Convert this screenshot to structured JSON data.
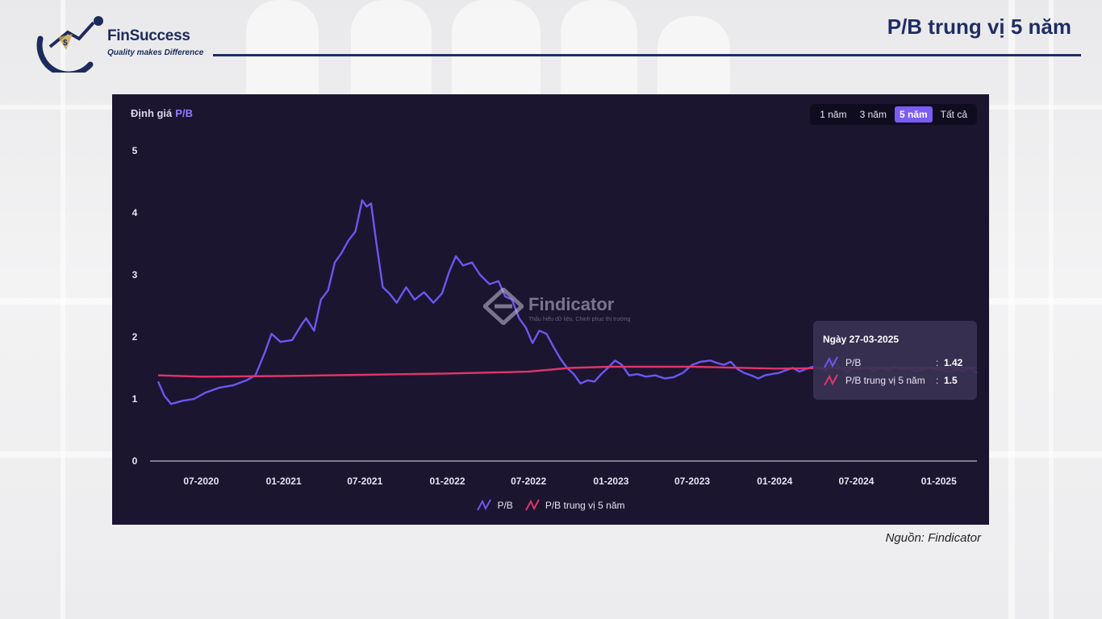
{
  "header": {
    "logo_name": "FinSuccess",
    "logo_tagline": "Quality makes Difference",
    "title": "P/B trung vị 5 năm"
  },
  "panel": {
    "title_prefix": "Định giá",
    "title_metric": "P/B",
    "range_buttons": [
      "1 năm",
      "3 năm",
      "5 năm",
      "Tất cả"
    ],
    "range_active": "5 năm",
    "watermark_name": "Findicator",
    "watermark_sub": "Thấu hiểu dữ liệu, Chinh phục thị trường"
  },
  "tooltip": {
    "date": "Ngày 27-03-2025",
    "rows": [
      {
        "name": "P/B",
        "value": "1.42"
      },
      {
        "name": "P/B trung vị 5 năm",
        "value": "1.5"
      }
    ]
  },
  "legend": [
    "P/B",
    "P/B trung vị 5 năm"
  ],
  "source": "Nguồn: Findicator",
  "colors": {
    "pb": "#6c57f0",
    "median": "#e0356a",
    "panel_bg": "#1b1530",
    "accent": "#7b5cf5"
  },
  "chart_data": {
    "type": "line",
    "x_tick_labels": [
      "07-2020",
      "01-2021",
      "07-2021",
      "01-2022",
      "07-2022",
      "01-2023",
      "07-2023",
      "01-2024",
      "07-2024",
      "01-2025"
    ],
    "y_tick_labels": [
      "0",
      "1",
      "2",
      "3",
      "4",
      "5"
    ],
    "ylim": [
      0,
      5
    ],
    "xlim": [
      "2020-03-27",
      "2025-03-27"
    ],
    "grid": false,
    "legend_position": "bottom",
    "series": [
      {
        "name": "P/B",
        "x": [
          "2020-03-27",
          "2020-04-10",
          "2020-04-25",
          "2020-05-20",
          "2020-06-15",
          "2020-07-10",
          "2020-08-10",
          "2020-09-10",
          "2020-10-10",
          "2020-10-30",
          "2020-11-20",
          "2020-12-05",
          "2020-12-25",
          "2021-01-20",
          "2021-02-10",
          "2021-02-20",
          "2021-03-10",
          "2021-03-25",
          "2021-04-10",
          "2021-04-25",
          "2021-05-10",
          "2021-05-25",
          "2021-06-10",
          "2021-06-25",
          "2021-07-05",
          "2021-07-15",
          "2021-07-25",
          "2021-08-10",
          "2021-08-25",
          "2021-09-10",
          "2021-10-01",
          "2021-10-20",
          "2021-11-10",
          "2021-12-01",
          "2021-12-20",
          "2022-01-05",
          "2022-01-20",
          "2022-02-05",
          "2022-02-25",
          "2022-03-15",
          "2022-04-05",
          "2022-04-25",
          "2022-05-10",
          "2022-05-25",
          "2022-06-10",
          "2022-06-25",
          "2022-07-10",
          "2022-07-25",
          "2022-08-10",
          "2022-08-25",
          "2022-09-10",
          "2022-09-25",
          "2022-10-10",
          "2022-10-25",
          "2022-11-10",
          "2022-11-25",
          "2022-12-10",
          "2022-12-25",
          "2023-01-10",
          "2023-01-25",
          "2023-02-10",
          "2023-03-01",
          "2023-03-20",
          "2023-04-10",
          "2023-05-01",
          "2023-05-20",
          "2023-06-10",
          "2023-07-01",
          "2023-07-20",
          "2023-08-10",
          "2023-08-25",
          "2023-09-10",
          "2023-09-25",
          "2023-10-10",
          "2023-10-25",
          "2023-11-10",
          "2023-11-25",
          "2023-12-10",
          "2023-12-25",
          "2024-01-10",
          "2024-01-25",
          "2024-02-10",
          "2024-02-25",
          "2024-03-10",
          "2024-03-25",
          "2024-04-10",
          "2024-04-25",
          "2024-05-10",
          "2024-05-25",
          "2024-06-10",
          "2024-06-25",
          "2024-07-10",
          "2024-07-25",
          "2024-08-10",
          "2024-08-25",
          "2024-09-10",
          "2024-09-25",
          "2024-10-10",
          "2024-10-25",
          "2024-11-10",
          "2024-11-25",
          "2024-12-10",
          "2024-12-25",
          "2025-01-10",
          "2025-01-25",
          "2025-02-10",
          "2025-02-25",
          "2025-03-10",
          "2025-03-27"
        ],
        "y": [
          1.28,
          1.05,
          0.92,
          0.97,
          1.0,
          1.1,
          1.18,
          1.22,
          1.3,
          1.38,
          1.75,
          2.05,
          1.92,
          1.95,
          2.2,
          2.3,
          2.1,
          2.6,
          2.75,
          3.2,
          3.35,
          3.55,
          3.7,
          4.2,
          4.1,
          4.15,
          3.6,
          2.8,
          2.7,
          2.55,
          2.8,
          2.6,
          2.72,
          2.55,
          2.7,
          3.05,
          3.3,
          3.15,
          3.2,
          3.0,
          2.85,
          2.9,
          2.65,
          2.6,
          2.3,
          2.15,
          1.9,
          2.1,
          2.05,
          1.85,
          1.65,
          1.5,
          1.4,
          1.25,
          1.3,
          1.28,
          1.4,
          1.5,
          1.62,
          1.55,
          1.38,
          1.4,
          1.36,
          1.38,
          1.33,
          1.35,
          1.42,
          1.55,
          1.6,
          1.62,
          1.58,
          1.55,
          1.6,
          1.48,
          1.42,
          1.38,
          1.33,
          1.38,
          1.4,
          1.42,
          1.46,
          1.5,
          1.44,
          1.48,
          1.52,
          1.5,
          1.46,
          1.62,
          1.5,
          1.44,
          1.5,
          1.48,
          1.52,
          1.45,
          1.5,
          1.46,
          1.52,
          1.48,
          1.5,
          1.45,
          1.47,
          1.5,
          1.48,
          1.46,
          1.44,
          1.47,
          1.45,
          1.5,
          1.42
        ]
      },
      {
        "name": "P/B trung vị 5 năm",
        "x": [
          "2020-03-27",
          "2020-07-01",
          "2021-01-01",
          "2021-07-01",
          "2022-01-01",
          "2022-07-01",
          "2022-10-01",
          "2023-01-01",
          "2023-07-01",
          "2024-01-01",
          "2024-07-01",
          "2025-01-01",
          "2025-03-27"
        ],
        "y": [
          1.38,
          1.36,
          1.37,
          1.39,
          1.41,
          1.44,
          1.5,
          1.52,
          1.52,
          1.49,
          1.5,
          1.5,
          1.5
        ]
      }
    ]
  }
}
